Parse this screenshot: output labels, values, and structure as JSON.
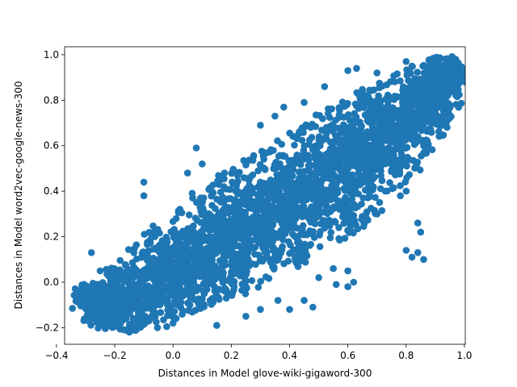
{
  "chart_data": {
    "type": "scatter",
    "title": "",
    "xlabel": "Distances in Model glove-wiki-gigaword-300",
    "ylabel": "Distances in Model word2vec-google-news-300",
    "xlim": [
      -0.372,
      1.003
    ],
    "ylim": [
      -0.273,
      1.035
    ],
    "xticks": [
      -0.4,
      -0.2,
      0.0,
      0.2,
      0.4,
      0.6,
      0.8,
      1.0
    ],
    "xtick_labels": [
      "−0.4",
      "−0.2",
      "0.0",
      "0.2",
      "0.4",
      "0.6",
      "0.8",
      "1.0"
    ],
    "yticks": [
      -0.2,
      0.0,
      0.2,
      0.4,
      0.6,
      0.8,
      1.0
    ],
    "ytick_labels": [
      "−0.2",
      "0.0",
      "0.2",
      "0.4",
      "0.6",
      "0.8",
      "1.0"
    ],
    "grid": false,
    "legend": "none",
    "marker_color": "#1f77b4",
    "series": [
      {
        "name": "",
        "description_points": "dense cloud",
        "band": {
          "along_axis": [
            [
              -0.3,
              -0.12
            ],
            [
              -0.2,
              -0.1
            ],
            [
              -0.1,
              -0.05
            ],
            [
              0.0,
              0.05
            ],
            [
              0.1,
              0.12
            ],
            [
              0.2,
              0.2
            ],
            [
              0.3,
              0.27
            ],
            [
              0.4,
              0.35
            ],
            [
              0.5,
              0.43
            ],
            [
              0.6,
              0.52
            ],
            [
              0.7,
              0.62
            ],
            [
              0.8,
              0.72
            ],
            [
              0.9,
              0.84
            ],
            [
              0.97,
              0.95
            ]
          ],
          "half_width": [
            0.1,
            0.14,
            0.18,
            0.22,
            0.24,
            0.26,
            0.27,
            0.27,
            0.27,
            0.26,
            0.24,
            0.2,
            0.14,
            0.06
          ]
        },
        "outliers": [
          [
            -0.345,
            -0.115
          ],
          [
            -0.28,
            0.13
          ],
          [
            -0.27,
            -0.12
          ],
          [
            -0.25,
            0.05
          ],
          [
            -0.1,
            0.44
          ],
          [
            -0.1,
            0.38
          ],
          [
            0.05,
            0.48
          ],
          [
            0.08,
            0.59
          ],
          [
            0.1,
            0.52
          ],
          [
            0.3,
            0.69
          ],
          [
            0.35,
            0.73
          ],
          [
            0.38,
            0.77
          ],
          [
            0.45,
            0.79
          ],
          [
            0.52,
            0.86
          ],
          [
            0.6,
            0.93
          ],
          [
            0.63,
            0.94
          ],
          [
            0.7,
            0.92
          ],
          [
            0.8,
            0.97
          ],
          [
            0.82,
            0.95
          ],
          [
            0.9,
            0.96
          ],
          [
            0.95,
            0.97
          ],
          [
            0.97,
            0.98
          ],
          [
            0.93,
            0.79
          ],
          [
            0.9,
            0.78
          ],
          [
            0.86,
            0.6
          ],
          [
            0.8,
            0.54
          ],
          [
            0.78,
            0.38
          ],
          [
            0.84,
            0.26
          ],
          [
            0.85,
            0.22
          ],
          [
            0.8,
            0.4
          ],
          [
            0.84,
            0.13
          ],
          [
            0.86,
            0.1
          ],
          [
            0.82,
            0.11
          ],
          [
            0.7,
            0.3
          ],
          [
            0.8,
            0.14
          ],
          [
            0.6,
            -0.02
          ],
          [
            0.56,
            -0.01
          ],
          [
            0.48,
            -0.11
          ],
          [
            0.45,
            -0.08
          ],
          [
            0.4,
            -0.12
          ],
          [
            0.36,
            -0.08
          ],
          [
            0.3,
            -0.12
          ],
          [
            0.25,
            -0.15
          ],
          [
            0.15,
            -0.19
          ],
          [
            0.0,
            -0.18
          ],
          [
            -0.15,
            -0.22
          ],
          [
            -0.18,
            -0.18
          ],
          [
            0.5,
            0.02
          ],
          [
            0.55,
            0.06
          ],
          [
            0.6,
            0.05
          ],
          [
            0.62,
            0.0
          ]
        ]
      }
    ]
  }
}
